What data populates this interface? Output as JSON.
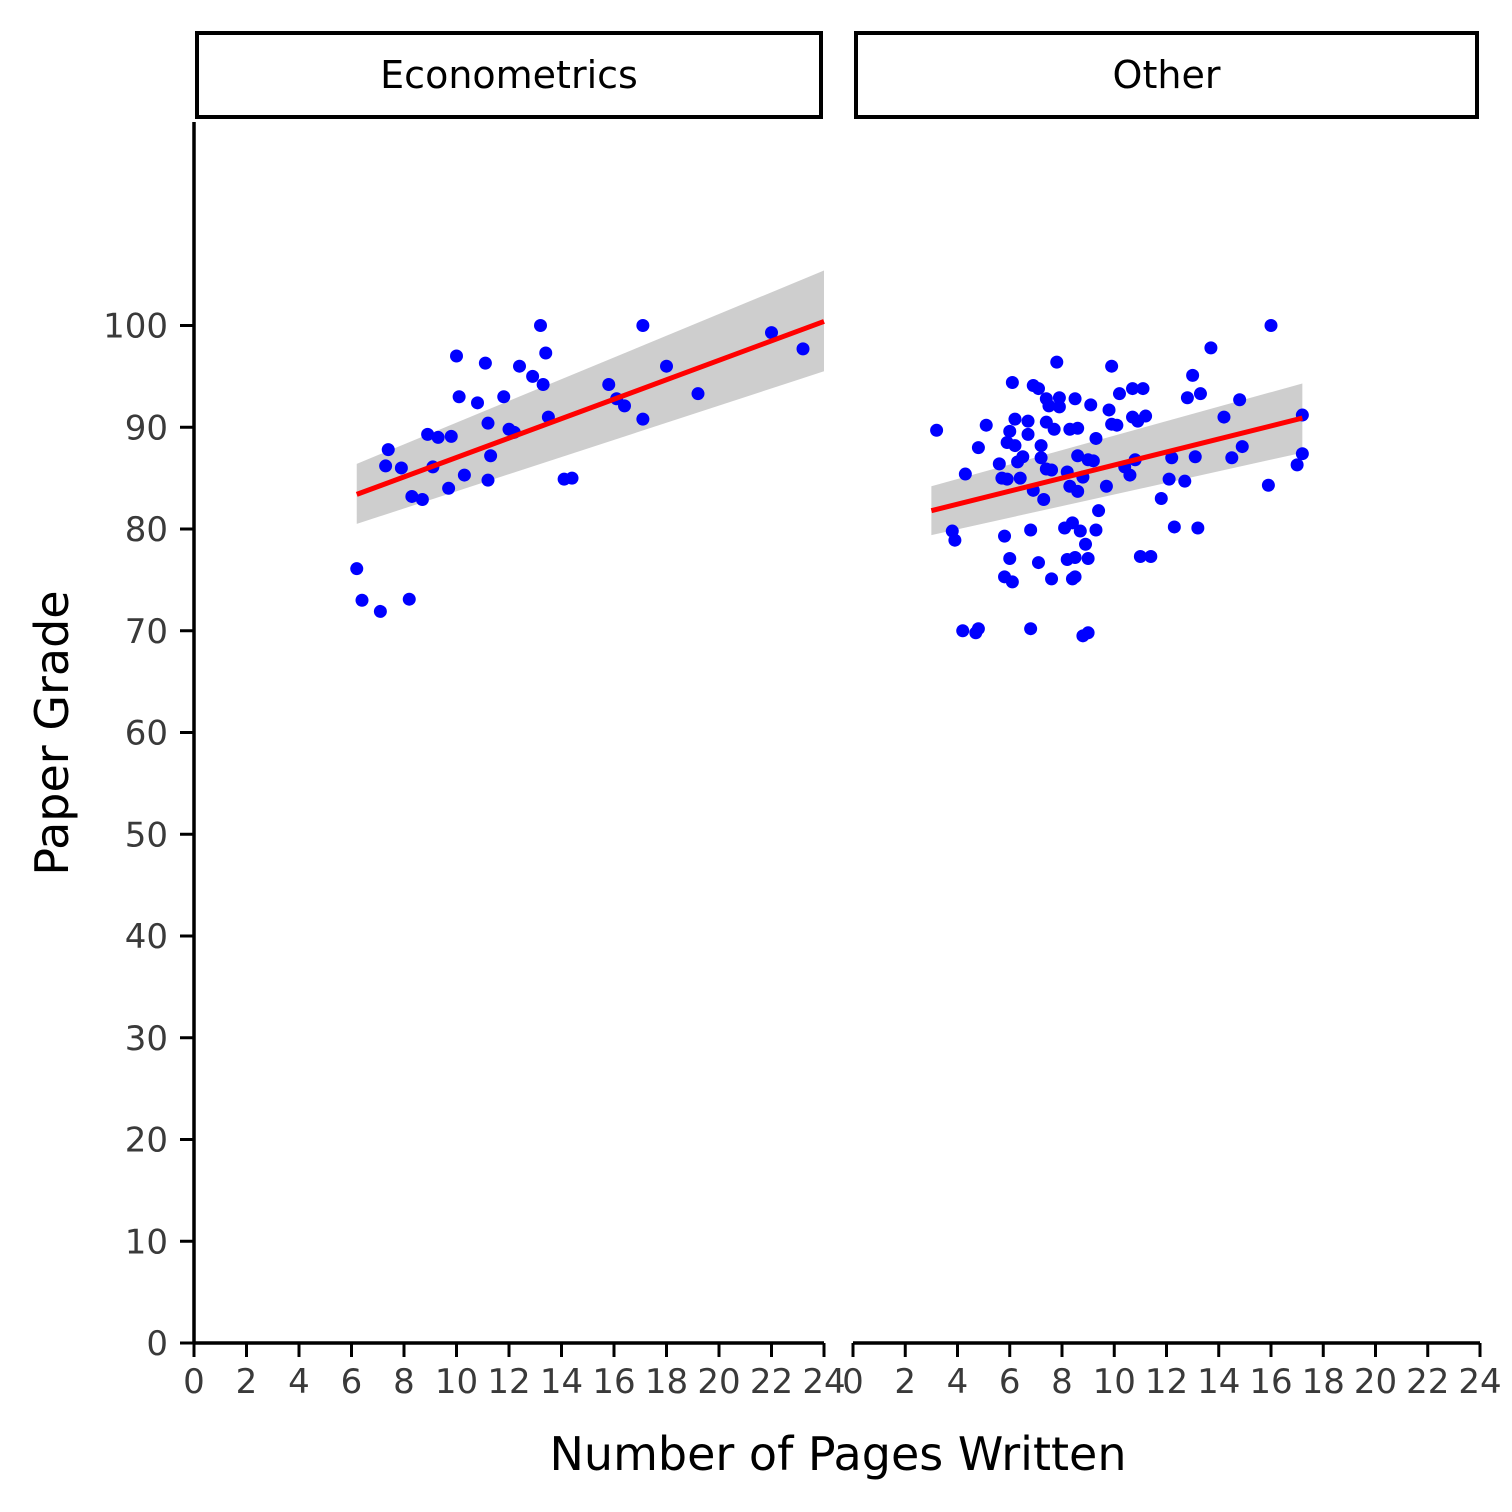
{
  "chart_data": {
    "type": "scatter",
    "xlabel": "Number of Pages Written",
    "ylabel": "Paper Grade",
    "xlim": [
      0,
      24
    ],
    "ylim": [
      0,
      120
    ],
    "x_ticks": [
      0,
      2,
      4,
      6,
      8,
      10,
      12,
      14,
      16,
      18,
      20,
      22,
      24
    ],
    "y_ticks": [
      0,
      10,
      20,
      30,
      40,
      50,
      60,
      70,
      80,
      90,
      100
    ],
    "grid": false,
    "legend": "none",
    "point_color": "#0000ff",
    "fit_color": "#ff0000",
    "band_color": "#bdbdbd",
    "panels": [
      {
        "name": "Econometrics",
        "points": [
          [
            6.2,
            76.1
          ],
          [
            6.4,
            73.0
          ],
          [
            7.1,
            71.9
          ],
          [
            7.3,
            86.2
          ],
          [
            7.4,
            87.8
          ],
          [
            7.9,
            86.0
          ],
          [
            8.2,
            73.1
          ],
          [
            8.3,
            83.2
          ],
          [
            8.7,
            82.9
          ],
          [
            8.9,
            89.3
          ],
          [
            9.1,
            86.1
          ],
          [
            9.3,
            89.0
          ],
          [
            9.7,
            84.0
          ],
          [
            9.8,
            89.1
          ],
          [
            10.0,
            97.0
          ],
          [
            10.1,
            93.0
          ],
          [
            10.3,
            85.3
          ],
          [
            10.8,
            92.4
          ],
          [
            11.1,
            96.3
          ],
          [
            11.2,
            90.4
          ],
          [
            11.2,
            84.8
          ],
          [
            11.3,
            87.2
          ],
          [
            11.8,
            93.0
          ],
          [
            12.0,
            89.8
          ],
          [
            12.2,
            89.5
          ],
          [
            12.4,
            96.0
          ],
          [
            12.9,
            95.0
          ],
          [
            13.2,
            100.0
          ],
          [
            13.3,
            94.2
          ],
          [
            13.4,
            97.3
          ],
          [
            13.5,
            91.0
          ],
          [
            14.1,
            84.9
          ],
          [
            14.4,
            85.0
          ],
          [
            15.8,
            94.2
          ],
          [
            16.1,
            92.8
          ],
          [
            16.4,
            92.1
          ],
          [
            17.1,
            100.0
          ],
          [
            17.1,
            90.8
          ],
          [
            18.0,
            96.0
          ],
          [
            19.2,
            93.3
          ],
          [
            22.0,
            99.3
          ],
          [
            23.2,
            97.7
          ]
        ],
        "fit": {
          "x": [
            6.2,
            24.0
          ],
          "y": [
            83.4,
            100.4
          ]
        },
        "band": {
          "x": [
            6.2,
            24.0
          ],
          "upper": [
            86.4,
            105.4
          ],
          "lower": [
            80.5,
            95.5
          ]
        }
      },
      {
        "name": "Other",
        "points": [
          [
            3.2,
            89.7
          ],
          [
            3.8,
            79.8
          ],
          [
            3.9,
            78.9
          ],
          [
            4.2,
            70.0
          ],
          [
            4.3,
            85.4
          ],
          [
            4.7,
            69.8
          ],
          [
            4.8,
            70.2
          ],
          [
            4.8,
            88.0
          ],
          [
            5.1,
            90.2
          ],
          [
            5.6,
            86.4
          ],
          [
            5.7,
            85.0
          ],
          [
            5.8,
            75.3
          ],
          [
            5.8,
            79.3
          ],
          [
            5.9,
            84.9
          ],
          [
            5.9,
            88.5
          ],
          [
            6.0,
            89.6
          ],
          [
            6.0,
            77.1
          ],
          [
            6.1,
            74.8
          ],
          [
            6.1,
            94.4
          ],
          [
            6.2,
            90.8
          ],
          [
            6.2,
            88.2
          ],
          [
            6.3,
            86.6
          ],
          [
            6.4,
            85.0
          ],
          [
            6.5,
            87.1
          ],
          [
            6.7,
            90.6
          ],
          [
            6.7,
            89.3
          ],
          [
            6.8,
            70.2
          ],
          [
            6.8,
            79.9
          ],
          [
            6.9,
            83.8
          ],
          [
            6.9,
            94.1
          ],
          [
            7.1,
            76.7
          ],
          [
            7.1,
            93.8
          ],
          [
            7.2,
            88.2
          ],
          [
            7.2,
            87.0
          ],
          [
            7.3,
            82.9
          ],
          [
            7.4,
            85.9
          ],
          [
            7.4,
            90.5
          ],
          [
            7.4,
            92.8
          ],
          [
            7.5,
            92.1
          ],
          [
            7.6,
            75.1
          ],
          [
            7.6,
            85.8
          ],
          [
            7.7,
            89.8
          ],
          [
            7.8,
            96.4
          ],
          [
            7.9,
            92.9
          ],
          [
            7.9,
            92.0
          ],
          [
            8.1,
            80.1
          ],
          [
            8.2,
            77.0
          ],
          [
            8.2,
            85.6
          ],
          [
            8.3,
            89.8
          ],
          [
            8.3,
            84.2
          ],
          [
            8.4,
            75.1
          ],
          [
            8.4,
            80.6
          ],
          [
            8.5,
            77.2
          ],
          [
            8.5,
            75.3
          ],
          [
            8.5,
            92.8
          ],
          [
            8.6,
            87.2
          ],
          [
            8.6,
            89.9
          ],
          [
            8.6,
            83.7
          ],
          [
            8.7,
            79.8
          ],
          [
            8.8,
            69.5
          ],
          [
            8.8,
            85.1
          ],
          [
            8.9,
            78.5
          ],
          [
            9.0,
            86.8
          ],
          [
            9.0,
            69.8
          ],
          [
            9.0,
            77.1
          ],
          [
            9.1,
            92.2
          ],
          [
            9.2,
            86.7
          ],
          [
            9.3,
            79.9
          ],
          [
            9.3,
            88.9
          ],
          [
            9.4,
            81.8
          ],
          [
            9.7,
            84.2
          ],
          [
            9.8,
            91.7
          ],
          [
            9.9,
            90.3
          ],
          [
            9.9,
            96.0
          ],
          [
            10.1,
            90.2
          ],
          [
            10.2,
            93.3
          ],
          [
            10.4,
            86.1
          ],
          [
            10.6,
            85.3
          ],
          [
            10.7,
            91.0
          ],
          [
            10.7,
            93.8
          ],
          [
            10.8,
            86.8
          ],
          [
            10.9,
            90.6
          ],
          [
            11.0,
            77.3
          ],
          [
            11.1,
            93.8
          ],
          [
            11.2,
            91.1
          ],
          [
            11.4,
            77.3
          ],
          [
            11.8,
            83.0
          ],
          [
            12.1,
            84.9
          ],
          [
            12.2,
            87.0
          ],
          [
            12.3,
            80.2
          ],
          [
            12.7,
            84.7
          ],
          [
            12.8,
            92.9
          ],
          [
            13.0,
            95.1
          ],
          [
            13.1,
            87.1
          ],
          [
            13.2,
            80.1
          ],
          [
            13.3,
            93.3
          ],
          [
            13.7,
            97.8
          ],
          [
            14.2,
            91.0
          ],
          [
            14.5,
            87.0
          ],
          [
            14.8,
            92.7
          ],
          [
            14.9,
            88.1
          ],
          [
            15.9,
            84.3
          ],
          [
            16.0,
            100.0
          ],
          [
            17.0,
            86.3
          ],
          [
            17.2,
            91.2
          ],
          [
            17.2,
            87.4
          ]
        ],
        "fit": {
          "x": [
            3.0,
            17.2
          ],
          "y": [
            81.8,
            90.9
          ]
        },
        "band": {
          "x": [
            3.0,
            17.2
          ],
          "upper": [
            84.2,
            94.3
          ],
          "lower": [
            79.4,
            87.5
          ]
        }
      }
    ]
  }
}
